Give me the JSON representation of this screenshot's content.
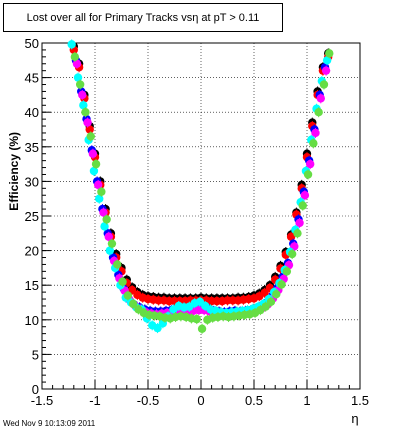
{
  "title": "Lost over all for Primary Tracks vsη at pT > 0.11",
  "footer": "Wed Nov  9 10:13:09 2011",
  "chart_data": {
    "type": "scatter",
    "title": "Lost over all for Primary Tracks vsη at pT > 0.11",
    "xlabel": "η",
    "ylabel": "Efficiency (%)",
    "xlim": [
      -1.5,
      1.5
    ],
    "ylim": [
      0,
      50
    ],
    "xticks": [
      -1.5,
      -1,
      -0.5,
      0,
      0.5,
      1,
      1.5
    ],
    "xtick_labels": [
      "-1.5",
      "-1",
      "-0.5",
      "0",
      "0.5",
      "1",
      "1.5"
    ],
    "yticks": [
      0,
      5,
      10,
      15,
      20,
      25,
      30,
      35,
      40,
      45,
      50
    ],
    "ytick_labels": [
      "0",
      "5",
      "10",
      "15",
      "20",
      "25",
      "30",
      "35",
      "40",
      "45",
      "50"
    ],
    "grid": true,
    "series": [
      {
        "color": "#000000",
        "x": [
          -1.2,
          -1.15,
          -1.1,
          -1.05,
          -1,
          -0.95,
          -0.9,
          -0.85,
          -0.8,
          -0.75,
          -0.7,
          -0.65,
          -0.6,
          -0.55,
          -0.5,
          -0.45,
          -0.4,
          -0.35,
          -0.3,
          -0.25,
          -0.2,
          -0.15,
          -0.1,
          -0.05,
          0,
          0.05,
          0.1,
          0.15,
          0.2,
          0.25,
          0.3,
          0.35,
          0.4,
          0.45,
          0.5,
          0.55,
          0.6,
          0.65,
          0.7,
          0.75,
          0.8,
          0.85,
          0.9,
          0.95,
          1,
          1.05,
          1.1,
          1.15,
          1.2
        ],
        "y": [
          49.5,
          47,
          42.5,
          38,
          34,
          30,
          26,
          22.5,
          19.5,
          17.5,
          15.8,
          14.7,
          14,
          13.6,
          13.4,
          13.3,
          13.2,
          13.2,
          13.1,
          13.1,
          13.1,
          13.1,
          13.1,
          13.1,
          13.2,
          13.1,
          13.1,
          13.1,
          13.1,
          13.1,
          13.1,
          13.2,
          13.2,
          13.3,
          13.5,
          13.8,
          14.3,
          15,
          16.2,
          17.8,
          19.8,
          22.3,
          25.5,
          29.5,
          34,
          38.5,
          43,
          46.5,
          48.5
        ]
      },
      {
        "color": "#ff0000",
        "x": [
          -1.2,
          -1.15,
          -1.1,
          -1.05,
          -1,
          -0.95,
          -0.9,
          -0.85,
          -0.8,
          -0.75,
          -0.7,
          -0.65,
          -0.6,
          -0.55,
          -0.5,
          -0.45,
          -0.4,
          -0.35,
          -0.3,
          -0.25,
          -0.2,
          -0.15,
          -0.1,
          -0.05,
          0,
          0.05,
          0.1,
          0.15,
          0.2,
          0.25,
          0.3,
          0.35,
          0.4,
          0.45,
          0.5,
          0.55,
          0.6,
          0.65,
          0.7,
          0.75,
          0.8,
          0.85,
          0.9,
          0.95,
          1,
          1.05,
          1.1,
          1.15,
          1.2
        ],
        "y": [
          49,
          46.5,
          42,
          37.5,
          33.5,
          29.5,
          25.5,
          22,
          19,
          17,
          15.3,
          14.3,
          13.6,
          13.2,
          13,
          12.9,
          12.8,
          12.8,
          12.7,
          12.7,
          12.7,
          12.7,
          12.8,
          12.8,
          12.8,
          12.8,
          12.7,
          12.7,
          12.7,
          12.8,
          12.8,
          12.8,
          12.9,
          13,
          13.1,
          13.4,
          13.9,
          14.6,
          15.8,
          17.4,
          19.4,
          22,
          25.2,
          29,
          33.5,
          38,
          42.5,
          46,
          48
        ]
      },
      {
        "color": "#0000ff",
        "x": [
          -1.18,
          -1.13,
          -1.08,
          -1.03,
          -0.98,
          -0.93,
          -0.88,
          -0.83,
          -0.78,
          -0.73,
          -0.68,
          -0.63,
          -0.58,
          -0.53,
          -0.48,
          -0.43,
          -0.38,
          -0.33,
          -0.28,
          -0.23,
          -0.18,
          -0.13,
          -0.08,
          -0.03,
          0.02,
          0.07,
          0.12,
          0.17,
          0.22,
          0.27,
          0.32,
          0.37,
          0.42,
          0.47,
          0.52,
          0.57,
          0.62,
          0.67,
          0.72,
          0.77,
          0.82,
          0.87,
          0.92,
          0.97,
          1.02,
          1.07,
          1.12,
          1.17
        ],
        "y": [
          47.5,
          43,
          39,
          34.5,
          30,
          26,
          22.5,
          19,
          16.5,
          14.5,
          13,
          12.2,
          11.8,
          11.5,
          11.3,
          11.2,
          11.2,
          11.3,
          11.4,
          11.5,
          11.3,
          11.4,
          11.6,
          11.7,
          11.8,
          11.6,
          11.3,
          11.2,
          11.1,
          11.2,
          11.3,
          11.2,
          11.3,
          11.4,
          11.6,
          12,
          12.5,
          13.4,
          14.6,
          16.2,
          18.2,
          21,
          24.5,
          28.5,
          33,
          37.5,
          42.5,
          46.5
        ]
      },
      {
        "color": "#ff00ff",
        "x": [
          -1.17,
          -1.12,
          -1.07,
          -1.02,
          -0.97,
          -0.92,
          -0.87,
          -0.82,
          -0.77,
          -0.72,
          -0.67,
          -0.62,
          -0.57,
          -0.52,
          -0.47,
          -0.42,
          -0.37,
          -0.32,
          -0.27,
          -0.22,
          -0.17,
          -0.12,
          -0.07,
          -0.02,
          0.03,
          0.08,
          0.13,
          0.18,
          0.23,
          0.28,
          0.33,
          0.38,
          0.43,
          0.48,
          0.53,
          0.58,
          0.63,
          0.68,
          0.73,
          0.78,
          0.83,
          0.88,
          0.93,
          0.98,
          1.03,
          1.08,
          1.13,
          1.18
        ],
        "y": [
          47,
          42.5,
          38.5,
          34,
          29.5,
          25.5,
          22,
          18.5,
          16,
          14.2,
          12.8,
          12,
          11.5,
          11.1,
          10.9,
          10.8,
          10.9,
          11,
          11.1,
          11.2,
          11,
          11.1,
          11.3,
          11.4,
          11.4,
          11.2,
          11,
          10.9,
          10.9,
          10.9,
          11,
          11,
          11.1,
          11.2,
          11.4,
          11.7,
          12.2,
          13.1,
          14.3,
          15.9,
          17.9,
          20.6,
          24,
          28,
          32.5,
          37,
          42,
          46
        ]
      },
      {
        "color": "#00ffff",
        "x": [
          -1.22,
          -1.16,
          -1.11,
          -1.06,
          -1.01,
          -0.96,
          -0.91,
          -0.86,
          -0.81,
          -0.76,
          -0.71,
          -0.66,
          -0.61,
          -0.56,
          -0.51,
          -0.46,
          -0.41,
          -0.36,
          -0.31,
          -0.26,
          -0.21,
          -0.16,
          -0.11,
          -0.06,
          -0.01,
          0.04,
          0.09,
          0.14,
          0.19,
          0.24,
          0.29,
          0.34,
          0.39,
          0.44,
          0.49,
          0.54,
          0.59,
          0.64,
          0.69,
          0.74,
          0.79,
          0.84,
          0.89,
          0.94,
          0.99,
          1.04,
          1.09,
          1.14,
          1.19
        ],
        "y": [
          49.8,
          45,
          41,
          36,
          31.5,
          27.5,
          23.5,
          20,
          17.5,
          15,
          13.2,
          12.5,
          11.8,
          11.5,
          10.2,
          9.2,
          8.8,
          9.5,
          10.5,
          11.5,
          12,
          11.8,
          11.9,
          12.4,
          12.6,
          12,
          11.5,
          11.3,
          11.1,
          11,
          11.1,
          11.2,
          11.3,
          11.4,
          11.6,
          11.9,
          12.3,
          13,
          14,
          15.3,
          17.2,
          19.8,
          23,
          27,
          31.5,
          36,
          40.5,
          44.5,
          47.5
        ]
      },
      {
        "color": "#66dd44",
        "x": [
          -1.19,
          -1.14,
          -1.09,
          -1.04,
          -0.99,
          -0.94,
          -0.89,
          -0.84,
          -0.79,
          -0.74,
          -0.69,
          -0.64,
          -0.59,
          -0.54,
          -0.49,
          -0.44,
          -0.39,
          -0.34,
          -0.29,
          -0.24,
          -0.19,
          -0.14,
          -0.09,
          -0.04,
          0.01,
          0.06,
          0.11,
          0.16,
          0.21,
          0.26,
          0.31,
          0.36,
          0.41,
          0.46,
          0.51,
          0.56,
          0.61,
          0.66,
          0.71,
          0.76,
          0.81,
          0.86,
          0.91,
          0.96,
          1.01,
          1.06,
          1.11,
          1.16,
          1.21
        ],
        "y": [
          48,
          44,
          40,
          36.5,
          32.5,
          28.5,
          24.5,
          21,
          18,
          15.5,
          13.5,
          12.3,
          11.5,
          11,
          10.7,
          10.6,
          10.5,
          10.3,
          10.2,
          10.4,
          10.5,
          10.4,
          10.2,
          10.1,
          8.7,
          10,
          10.3,
          10.4,
          10.5,
          10.4,
          10.5,
          10.6,
          10.7,
          10.8,
          11,
          11.4,
          11.9,
          12.6,
          13.7,
          15.1,
          17,
          19.5,
          22.5,
          26.5,
          31,
          35.5,
          40,
          44,
          48.5
        ]
      }
    ]
  }
}
